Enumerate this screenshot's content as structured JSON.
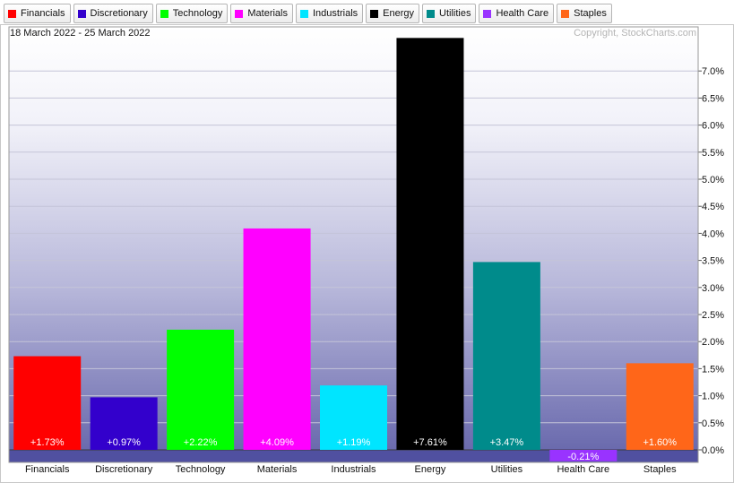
{
  "chart_data": {
    "type": "bar",
    "date_range": "18 March 2022 - 25 March 2022",
    "copyright": "Copyright, StockCharts.com",
    "categories": [
      "Financials",
      "Discretionary",
      "Technology",
      "Materials",
      "Industrials",
      "Energy",
      "Utilities",
      "Health Care",
      "Staples"
    ],
    "values": [
      1.73,
      0.97,
      2.22,
      4.09,
      1.19,
      7.61,
      3.47,
      -0.21,
      1.6
    ],
    "data_labels": [
      "+1.73%",
      "+0.97%",
      "+2.22%",
      "+4.09%",
      "+1.19%",
      "+7.61%",
      "+3.47%",
      "-0.21%",
      "+1.60%"
    ],
    "colors": [
      "#ff0000",
      "#3300cc",
      "#00ff00",
      "#ff00ff",
      "#00e5ff",
      "#000000",
      "#008b8b",
      "#9933ff",
      "#ff6619"
    ],
    "yticks": [
      0.0,
      0.5,
      1.0,
      1.5,
      2.0,
      2.5,
      3.0,
      3.5,
      4.0,
      4.5,
      5.0,
      5.5,
      6.0,
      6.5,
      7.0
    ],
    "ytick_labels": [
      "0.0%",
      "0.5%",
      "1.0%",
      "1.5%",
      "2.0%",
      "2.5%",
      "3.0%",
      "3.5%",
      "4.0%",
      "4.5%",
      "5.0%",
      "5.5%",
      "6.0%",
      "6.5%",
      "7.0%"
    ],
    "ylim": [
      -0.25,
      7.6
    ],
    "grid": true,
    "legend_position": "top-left",
    "title": "",
    "xlabel": "",
    "ylabel": ""
  }
}
